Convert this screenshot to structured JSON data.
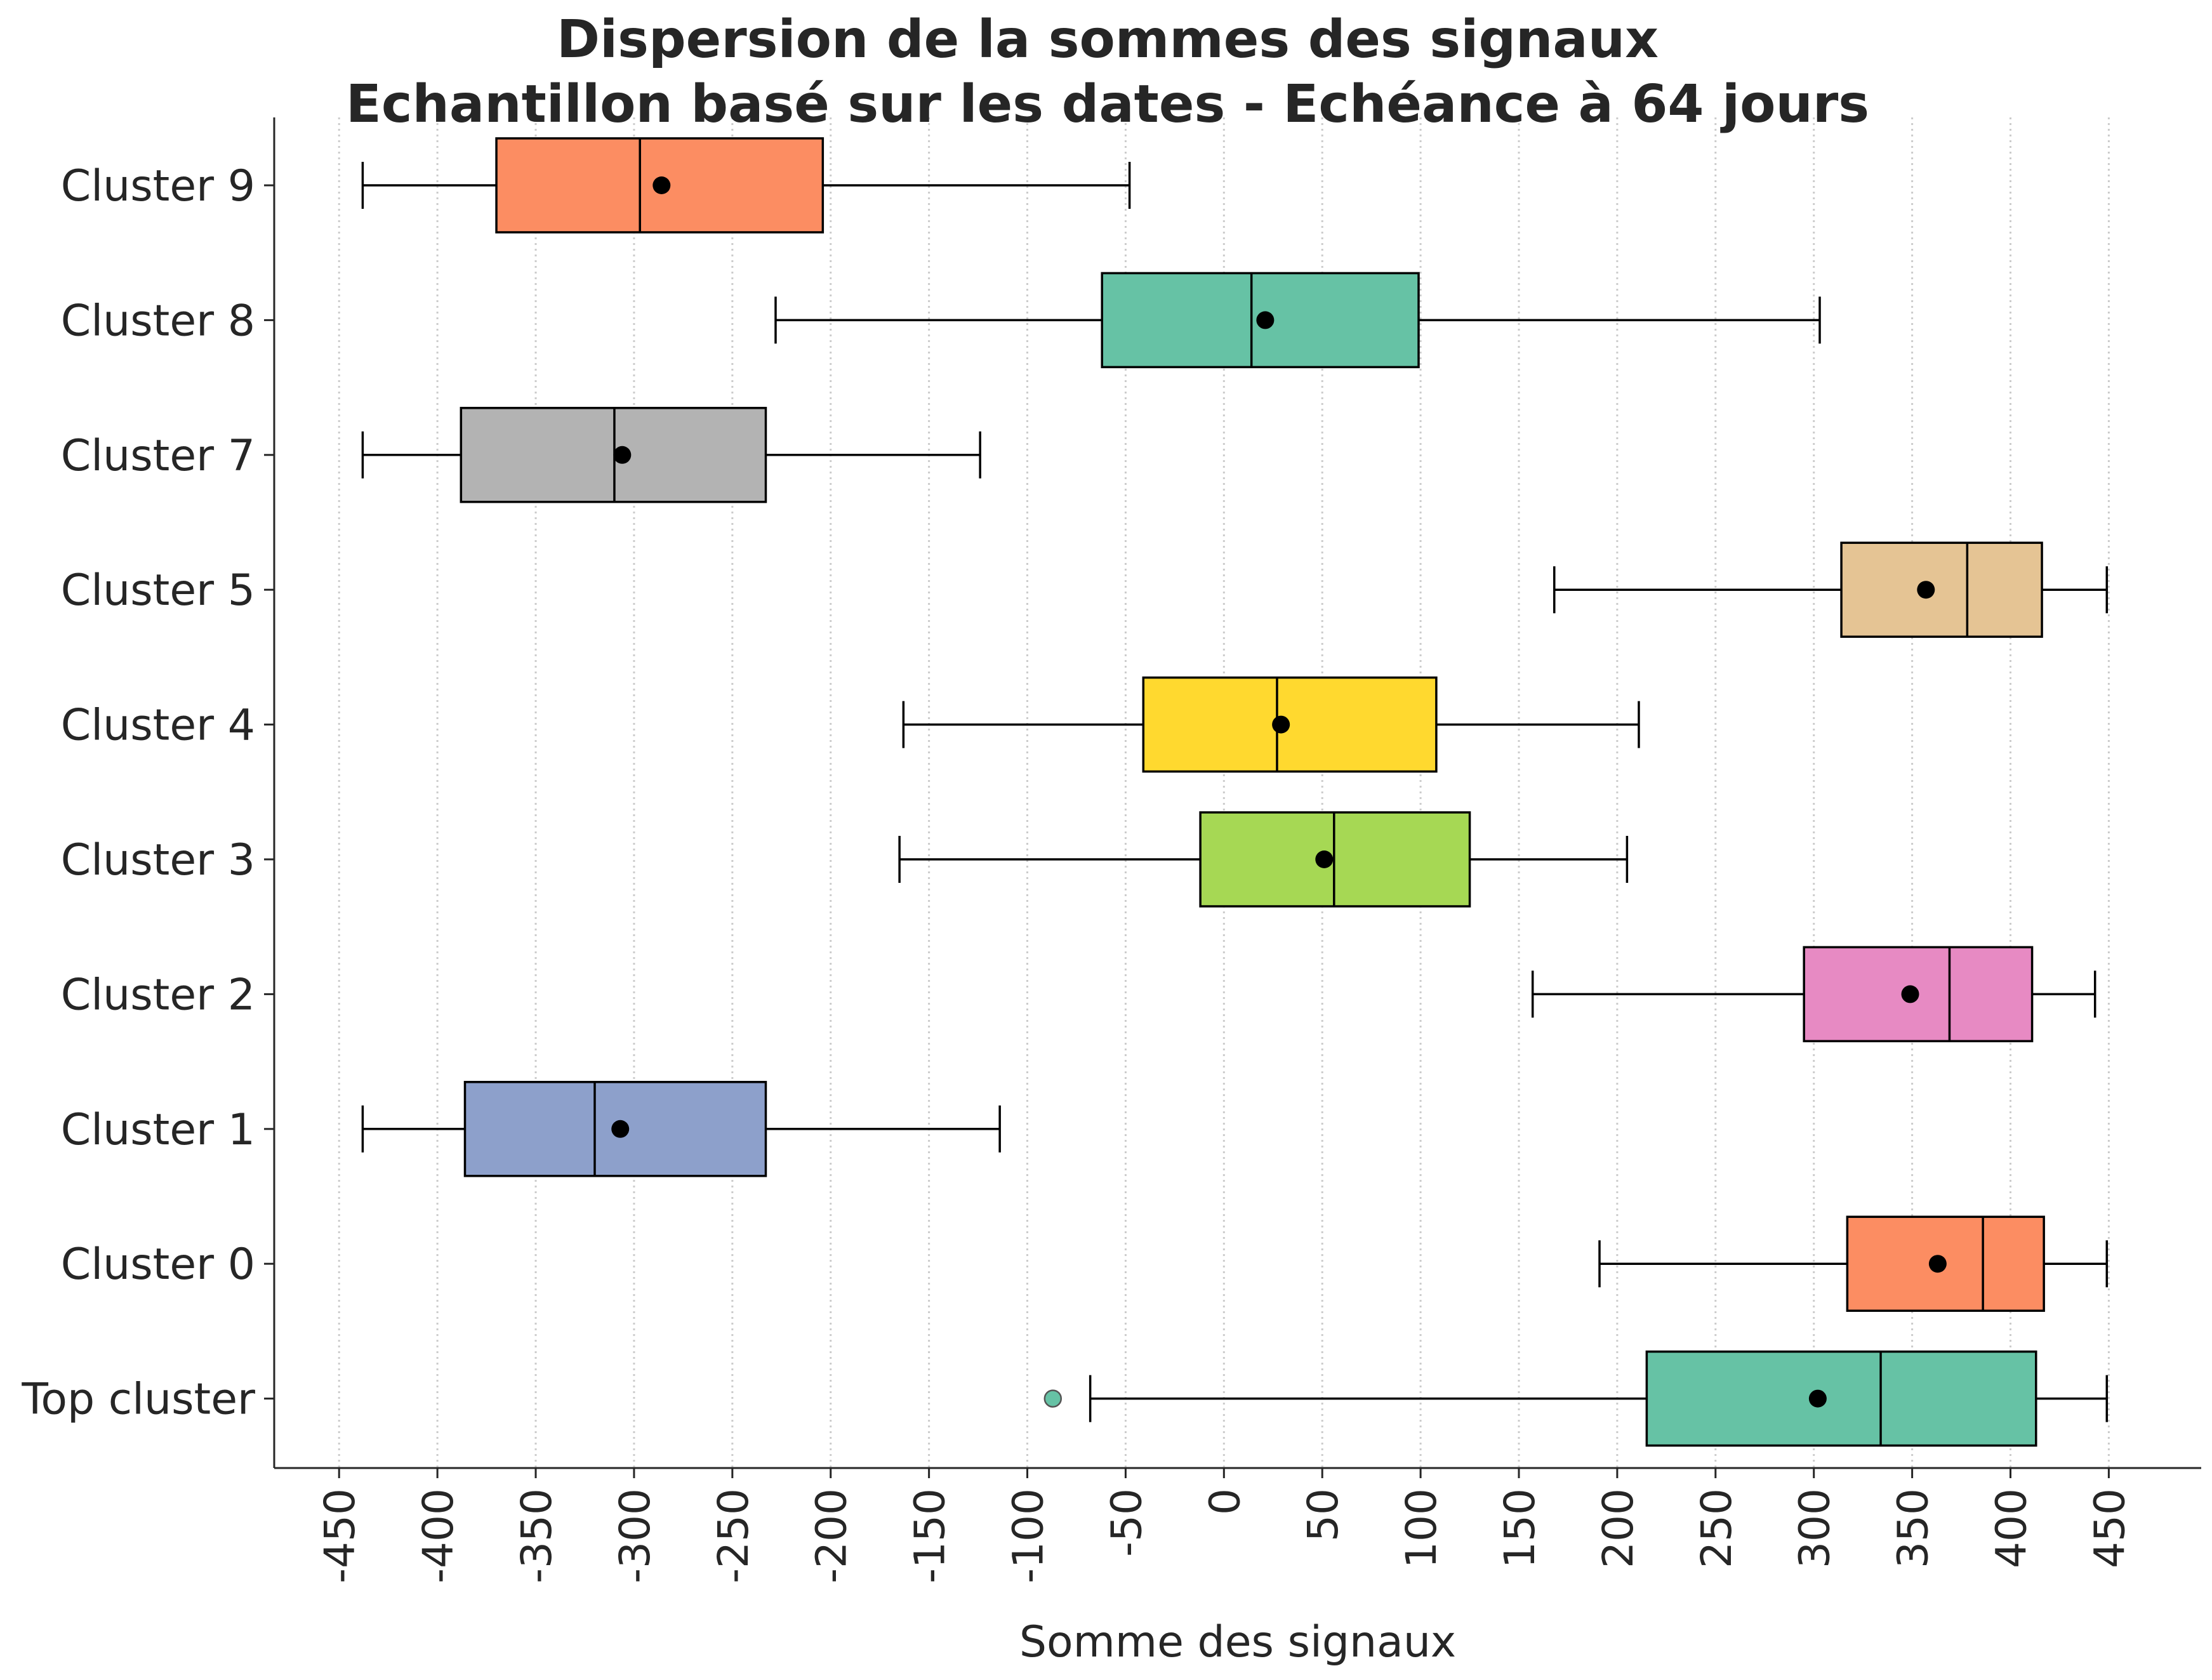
{
  "chart_data": {
    "type": "box",
    "orientation": "horizontal",
    "title": [
      "Dispersion de la sommes des signaux",
      "Echantillon basé sur les dates - Echéance à 64 jours"
    ],
    "xlabel": "Somme des signaux",
    "ylabel": "",
    "xlim": [
      -483,
      497
    ],
    "xticks": [
      -450,
      -400,
      -350,
      -300,
      -250,
      -200,
      -150,
      -100,
      -50,
      0,
      50,
      100,
      150,
      200,
      250,
      300,
      350,
      400,
      450
    ],
    "grid": "vertical-dotted",
    "categories": [
      "Cluster 9",
      "Cluster 8",
      "Cluster 7",
      "Cluster 5",
      "Cluster 4",
      "Cluster 3",
      "Cluster 2",
      "Cluster 1",
      "Cluster 0",
      "Top cluster"
    ],
    "boxes": [
      {
        "label": "Cluster 9",
        "whislo": -438,
        "q1": -370,
        "med": -297,
        "q3": -204,
        "whishi": -48,
        "mean": -286,
        "fliers": [],
        "color": "#fc8d62"
      },
      {
        "label": "Cluster 8",
        "whislo": -228,
        "q1": -62,
        "med": 14,
        "q3": 99,
        "whishi": 303,
        "mean": 21,
        "fliers": [],
        "color": "#66c2a5"
      },
      {
        "label": "Cluster 7",
        "whislo": -438,
        "q1": -388,
        "med": -310,
        "q3": -233,
        "whishi": -124,
        "mean": -306,
        "fliers": [],
        "color": "#b3b3b3"
      },
      {
        "label": "Cluster 5",
        "whislo": 168,
        "q1": 314,
        "med": 378,
        "q3": 416,
        "whishi": 449,
        "mean": 357,
        "fliers": [],
        "color": "#e5c494"
      },
      {
        "label": "Cluster 4",
        "whislo": -163,
        "q1": -41,
        "med": 27,
        "q3": 108,
        "whishi": 211,
        "mean": 29,
        "fliers": [],
        "color": "#ffd92f"
      },
      {
        "label": "Cluster 3",
        "whislo": -165,
        "q1": -12,
        "med": 56,
        "q3": 125,
        "whishi": 205,
        "mean": 51,
        "fliers": [],
        "color": "#a6d854"
      },
      {
        "label": "Cluster 2",
        "whislo": 157,
        "q1": 295,
        "med": 369,
        "q3": 411,
        "whishi": 443,
        "mean": 349,
        "fliers": [],
        "color": "#e78ac3"
      },
      {
        "label": "Cluster 1",
        "whislo": -438,
        "q1": -386,
        "med": -320,
        "q3": -233,
        "whishi": -114,
        "mean": -307,
        "fliers": [],
        "color": "#8da0cb"
      },
      {
        "label": "Cluster 0",
        "whislo": 191,
        "q1": 317,
        "med": 386,
        "q3": 417,
        "whishi": 449,
        "mean": 363,
        "fliers": [],
        "color": "#fc8d62"
      },
      {
        "label": "Top cluster",
        "whislo": -68,
        "q1": 215,
        "med": 334,
        "q3": 413,
        "whishi": 449,
        "mean": 302,
        "fliers": [
          -87
        ],
        "color": "#66c2a5"
      }
    ]
  }
}
